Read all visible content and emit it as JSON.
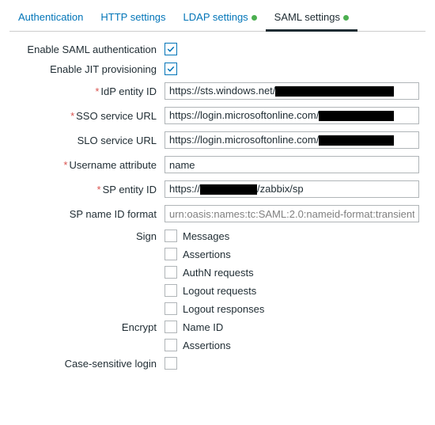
{
  "tabs": [
    {
      "label": "Authentication",
      "active": false,
      "dot": false
    },
    {
      "label": "HTTP settings",
      "active": false,
      "dot": false
    },
    {
      "label": "LDAP settings",
      "active": false,
      "dot": true
    },
    {
      "label": "SAML settings",
      "active": true,
      "dot": true
    }
  ],
  "labels": {
    "enable_saml": "Enable SAML authentication",
    "enable_jit": "Enable JIT provisioning",
    "idp_entity": "IdP entity ID",
    "sso_url": "SSO service URL",
    "slo_url": "SLO service URL",
    "username_attr": "Username attribute",
    "sp_entity": "SP entity ID",
    "sp_nameid": "SP name ID format",
    "sign": "Sign",
    "encrypt": "Encrypt",
    "case_sensitive": "Case-sensitive login"
  },
  "values": {
    "enable_saml": true,
    "enable_jit": true,
    "idp_entity_prefix": "https://sts.windows.net/",
    "idp_entity_redact_w": 150,
    "sso_url_prefix": "https://login.microsoftonline.com/",
    "sso_url_redact_w": 95,
    "slo_url_prefix": "https://login.microsoftonline.com/",
    "slo_url_redact_w": 95,
    "username_attr": "name",
    "sp_entity_prefix": "https://",
    "sp_entity_redact_w": 72,
    "sp_entity_suffix": "/zabbix/sp",
    "sp_nameid_placeholder": "urn:oasis:names:tc:SAML:2.0:nameid-format:transient",
    "case_sensitive": false
  },
  "sign_opts": [
    {
      "label": "Messages",
      "checked": false
    },
    {
      "label": "Assertions",
      "checked": false
    },
    {
      "label": "AuthN requests",
      "checked": false
    },
    {
      "label": "Logout requests",
      "checked": false
    },
    {
      "label": "Logout responses",
      "checked": false
    }
  ],
  "encrypt_opts": [
    {
      "label": "Name ID",
      "checked": false
    },
    {
      "label": "Assertions",
      "checked": false
    }
  ],
  "colors": {
    "link": "#0275b8",
    "text": "#1f2c33",
    "required": "#d9534f",
    "dot": "#4caf50",
    "border": "#b0b5b8"
  }
}
